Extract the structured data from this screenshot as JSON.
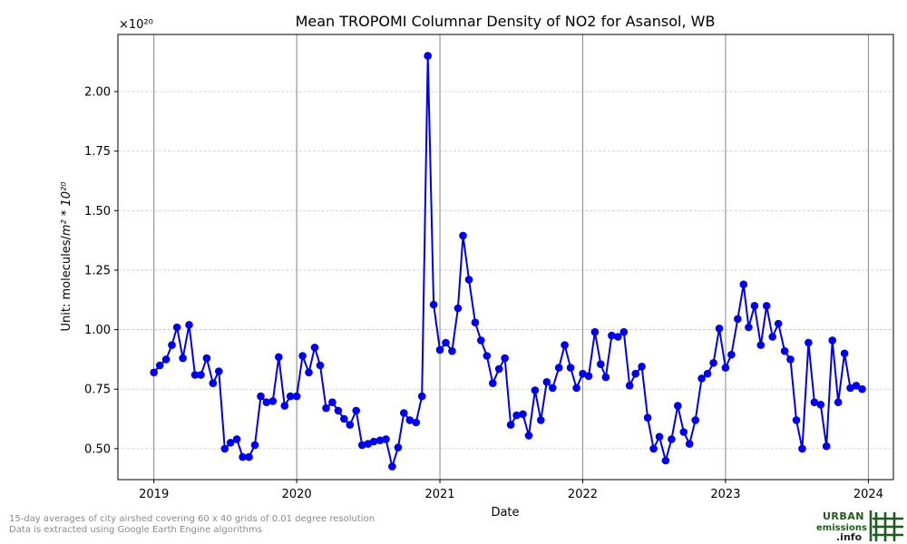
{
  "chart_data": {
    "type": "line",
    "title": "Mean TROPOMI Columnar Density of NO2 for Asansol, WB",
    "xlabel": "Date",
    "ylabel_prefix": "Unit: molecules/",
    "ylabel_math": "m² * 10²⁰",
    "offset_label": "×10²⁰",
    "xlim": [
      "2018-10-01",
      "2024-03-05"
    ],
    "ylim": [
      0.37,
      2.24
    ],
    "x_ticks": [
      "2019-01-01",
      "2020-01-01",
      "2021-01-01",
      "2022-01-01",
      "2023-01-01",
      "2024-01-01"
    ],
    "x_tick_labels": [
      "2019",
      "2020",
      "2021",
      "2022",
      "2023",
      "2024"
    ],
    "y_ticks": [
      0.5,
      0.75,
      1.0,
      1.25,
      1.5,
      1.75,
      2.0
    ],
    "y_tick_labels": [
      "0.50",
      "0.75",
      "1.00",
      "1.25",
      "1.50",
      "1.75",
      "2.00"
    ],
    "grid": true,
    "line_color": "#0000ee",
    "marker_color": "#0000ee",
    "series": [
      {
        "x": [
          "2019-01-01",
          "2019-01-16",
          "2019-02-01",
          "2019-02-16",
          "2019-03-01",
          "2019-03-16",
          "2019-04-01",
          "2019-04-16",
          "2019-05-01",
          "2019-05-16",
          "2019-06-01",
          "2019-06-16",
          "2019-07-01",
          "2019-07-16",
          "2019-08-01",
          "2019-08-16",
          "2019-09-01",
          "2019-09-16",
          "2019-10-01",
          "2019-10-16",
          "2019-11-01",
          "2019-11-16",
          "2019-12-01",
          "2019-12-16",
          "2020-01-01",
          "2020-01-16",
          "2020-02-01",
          "2020-02-16",
          "2020-03-01",
          "2020-03-16",
          "2020-04-01",
          "2020-04-16",
          "2020-05-01",
          "2020-05-16",
          "2020-06-01",
          "2020-06-16",
          "2020-07-01",
          "2020-07-16",
          "2020-08-01",
          "2020-08-16",
          "2020-09-01",
          "2020-09-16",
          "2020-10-01",
          "2020-10-16",
          "2020-11-01",
          "2020-11-16",
          "2020-12-01",
          "2020-12-16",
          "2021-01-01",
          "2021-01-16",
          "2021-02-01",
          "2021-02-16",
          "2021-03-01",
          "2021-03-16",
          "2021-04-01",
          "2021-04-16",
          "2021-05-01",
          "2021-05-16",
          "2021-06-01",
          "2021-06-16",
          "2021-07-01",
          "2021-07-16",
          "2021-08-01",
          "2021-08-16",
          "2021-09-01",
          "2021-09-16",
          "2021-10-01",
          "2021-10-16",
          "2021-11-01",
          "2021-11-16",
          "2021-12-01",
          "2021-12-16",
          "2022-01-01",
          "2022-01-16",
          "2022-02-01",
          "2022-02-16",
          "2022-03-01",
          "2022-03-16",
          "2022-04-01",
          "2022-04-16",
          "2022-05-01",
          "2022-05-16",
          "2022-06-01",
          "2022-06-16",
          "2022-07-01",
          "2022-07-16",
          "2022-08-01",
          "2022-08-16",
          "2022-09-01",
          "2022-09-16",
          "2022-10-01",
          "2022-10-16",
          "2022-11-01",
          "2022-11-16",
          "2022-12-01",
          "2022-12-16",
          "2023-01-01",
          "2023-01-16",
          "2023-02-01",
          "2023-02-16",
          "2023-03-01",
          "2023-03-16",
          "2023-04-01",
          "2023-04-16",
          "2023-05-01",
          "2023-05-16",
          "2023-06-01",
          "2023-06-16",
          "2023-07-01",
          "2023-07-16",
          "2023-08-01",
          "2023-08-16",
          "2023-09-01",
          "2023-09-16",
          "2023-10-01",
          "2023-10-16",
          "2023-11-01",
          "2023-11-16",
          "2023-12-01",
          "2023-12-16"
        ],
        "y": [
          0.82,
          0.85,
          0.875,
          0.935,
          1.01,
          0.88,
          1.02,
          0.81,
          0.81,
          0.88,
          0.775,
          0.825,
          0.5,
          0.525,
          0.54,
          0.465,
          0.465,
          0.515,
          0.72,
          0.695,
          0.7,
          0.885,
          0.68,
          0.72,
          0.72,
          0.89,
          0.82,
          0.925,
          0.85,
          0.67,
          0.695,
          0.66,
          0.625,
          0.6,
          0.66,
          0.515,
          0.52,
          0.53,
          0.535,
          0.54,
          0.425,
          0.505,
          0.65,
          0.62,
          0.61,
          0.72,
          2.15,
          1.105,
          0.915,
          0.945,
          0.91,
          1.09,
          1.395,
          1.21,
          1.03,
          0.955,
          0.89,
          0.775,
          0.835,
          0.88,
          0.6,
          0.64,
          0.645,
          0.555,
          0.745,
          0.62,
          0.78,
          0.755,
          0.84,
          0.935,
          0.84,
          0.755,
          0.815,
          0.805,
          0.99,
          0.855,
          0.8,
          0.975,
          0.97,
          0.99,
          0.765,
          0.815,
          0.845,
          0.63,
          0.5,
          0.55,
          0.45,
          0.54,
          0.68,
          0.57,
          0.52,
          0.62,
          0.795,
          0.815,
          0.86,
          1.005,
          0.84,
          0.895,
          1.045,
          1.19,
          1.01,
          1.1,
          0.935,
          1.1,
          0.97,
          1.025,
          0.91,
          0.875,
          0.62,
          0.5,
          0.945,
          0.695,
          0.685,
          0.51,
          0.955,
          0.695,
          0.9,
          0.755,
          0.765,
          0.75
        ]
      }
    ]
  },
  "footer": {
    "line1": "15-day averages of city airshed covering 60 x 40 grids of 0.01 degree resolution",
    "line2": "Data is extracted using Google Earth Engine algorithms"
  },
  "logo": {
    "word1": "URBAN",
    "word2": "emissions",
    "word3": ".info",
    "icon": "hash-grid-icon",
    "color": "#1f5a1f"
  }
}
